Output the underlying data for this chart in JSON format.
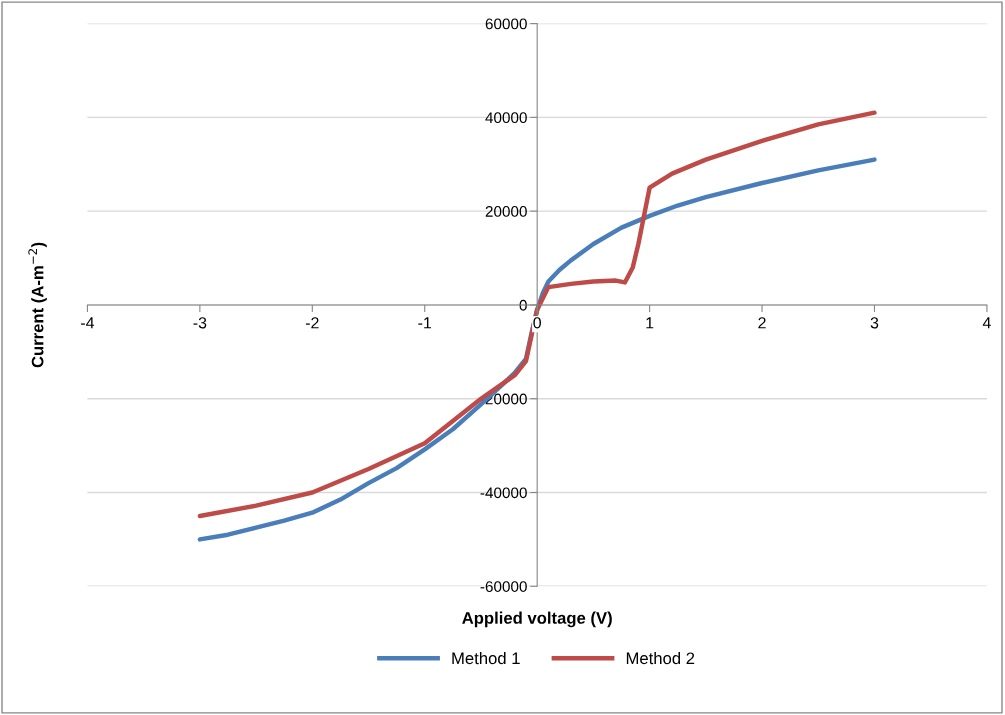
{
  "chart_data": {
    "type": "line",
    "xlabel": "Applied voltage (V)",
    "ylabel": "Current (A-m$^{−2}$)",
    "xlim": [
      -4,
      4
    ],
    "xticks": [
      -4,
      -3,
      -2,
      -1,
      0,
      1,
      2,
      3,
      4
    ],
    "ylim": [
      -60000,
      60000
    ],
    "yticks": [
      -60000,
      -40000,
      -20000,
      0,
      20000,
      40000,
      60000
    ],
    "grid": "y",
    "legend": "bottom",
    "marker": "none",
    "line_style": "solid",
    "series": [
      {
        "name": "Method 1",
        "color": "#4a7ebb",
        "x": [
          -3,
          -2.75,
          -2.5,
          -2.25,
          -2,
          -1.75,
          -1.5,
          -1.25,
          -1,
          -0.75,
          -0.5,
          -0.3,
          -0.2,
          -0.1,
          -0.05,
          0,
          0.05,
          0.1,
          0.2,
          0.3,
          0.5,
          0.75,
          1,
          1.25,
          1.5,
          2,
          2.5,
          3
        ],
        "values": [
          -50000,
          -49000,
          -47500,
          -46000,
          -44300,
          -41500,
          -38000,
          -34800,
          -30800,
          -26500,
          -21200,
          -16800,
          -14500,
          -11500,
          -6000,
          -1000,
          2500,
          5000,
          7500,
          9500,
          13000,
          16500,
          19000,
          21200,
          23000,
          26000,
          28700,
          31000
        ]
      },
      {
        "name": "Method 2",
        "color": "#be4b48",
        "x": [
          -3,
          -2.5,
          -2,
          -1.5,
          -1,
          -0.5,
          -0.2,
          -0.1,
          0,
          0.1,
          0.3,
          0.5,
          0.7,
          0.78,
          0.85,
          0.9,
          0.95,
          1,
          1.2,
          1.5,
          2,
          2.5,
          3
        ],
        "values": [
          -45000,
          -42800,
          -40000,
          -35000,
          -29500,
          -20000,
          -15000,
          -12000,
          -1000,
          3800,
          4500,
          5000,
          5200,
          4800,
          8000,
          13000,
          19000,
          25000,
          28000,
          31000,
          35000,
          38500,
          41000
        ]
      }
    ]
  }
}
